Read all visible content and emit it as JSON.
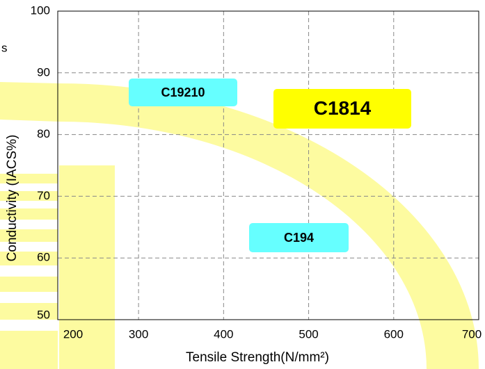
{
  "chart_data": {
    "type": "region-map",
    "fragment": "s",
    "xlabel": "Tensile Strength(N/mm²)",
    "ylabel": "Conductivity (IACS%)",
    "xlim": [
      205,
      700
    ],
    "ylim": [
      50,
      100
    ],
    "xticks": [
      200,
      300,
      400,
      500,
      600,
      700
    ],
    "yticks": [
      50,
      60,
      70,
      80,
      90,
      100
    ],
    "grid": true,
    "regions": [
      {
        "label": "C19210",
        "color": "#66ffff"
      },
      {
        "label": "C1814",
        "color": "#ffff00"
      },
      {
        "label": "C194",
        "color": "#66ffff"
      }
    ]
  }
}
